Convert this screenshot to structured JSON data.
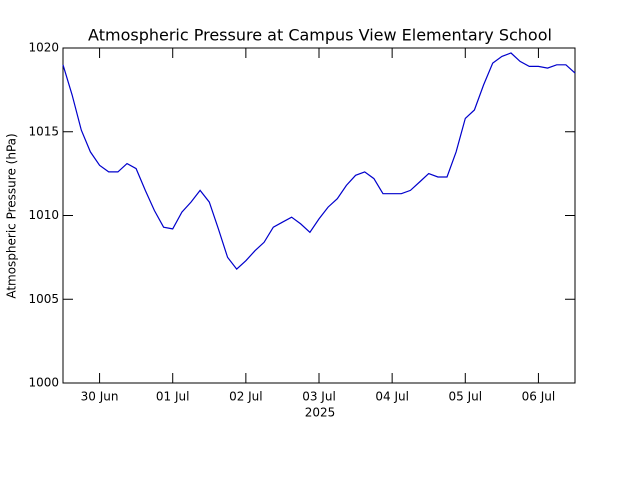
{
  "chart_data": {
    "type": "line",
    "title": "Atmospheric Pressure at Campus View Elementary School",
    "ylabel": "Atmospheric Pressure (hPa)",
    "xlabel": "2025",
    "color": "#0000cc",
    "xlim": [
      "2025-06-29T12:00",
      "2025-07-06T12:00"
    ],
    "xticks": [
      {
        "value": "2025-06-30T00:00",
        "label": "30 Jun"
      },
      {
        "value": "2025-07-01T00:00",
        "label": "01 Jul"
      },
      {
        "value": "2025-07-02T00:00",
        "label": "02 Jul"
      },
      {
        "value": "2025-07-03T00:00",
        "label": "03 Jul"
      },
      {
        "value": "2025-07-04T00:00",
        "label": "04 Jul"
      },
      {
        "value": "2025-07-05T00:00",
        "label": "05 Jul"
      },
      {
        "value": "2025-07-06T00:00",
        "label": "06 Jul"
      }
    ],
    "ylim": [
      1000,
      1020
    ],
    "yticks": [
      1000,
      1005,
      1010,
      1015,
      1020
    ],
    "x": [
      "2025-06-29T12:00",
      "2025-06-29T15:00",
      "2025-06-29T18:00",
      "2025-06-29T21:00",
      "2025-06-30T00:00",
      "2025-06-30T03:00",
      "2025-06-30T06:00",
      "2025-06-30T09:00",
      "2025-06-30T12:00",
      "2025-06-30T15:00",
      "2025-06-30T18:00",
      "2025-06-30T21:00",
      "2025-07-01T00:00",
      "2025-07-01T03:00",
      "2025-07-01T06:00",
      "2025-07-01T09:00",
      "2025-07-01T12:00",
      "2025-07-01T15:00",
      "2025-07-01T18:00",
      "2025-07-01T21:00",
      "2025-07-02T00:00",
      "2025-07-02T03:00",
      "2025-07-02T06:00",
      "2025-07-02T09:00",
      "2025-07-02T12:00",
      "2025-07-02T15:00",
      "2025-07-02T18:00",
      "2025-07-02T21:00",
      "2025-07-03T00:00",
      "2025-07-03T03:00",
      "2025-07-03T06:00",
      "2025-07-03T09:00",
      "2025-07-03T12:00",
      "2025-07-03T15:00",
      "2025-07-03T18:00",
      "2025-07-03T21:00",
      "2025-07-04T00:00",
      "2025-07-04T03:00",
      "2025-07-04T06:00",
      "2025-07-04T09:00",
      "2025-07-04T12:00",
      "2025-07-04T15:00",
      "2025-07-04T18:00",
      "2025-07-04T21:00",
      "2025-07-05T00:00",
      "2025-07-05T03:00",
      "2025-07-05T06:00",
      "2025-07-05T09:00",
      "2025-07-05T12:00",
      "2025-07-05T15:00",
      "2025-07-05T18:00",
      "2025-07-05T21:00",
      "2025-07-06T00:00",
      "2025-07-06T03:00",
      "2025-07-06T06:00",
      "2025-07-06T09:00",
      "2025-07-06T12:00"
    ],
    "values": [
      1019.0,
      1017.2,
      1015.1,
      1013.8,
      1013.0,
      1012.6,
      1012.6,
      1013.1,
      1012.8,
      1011.5,
      1010.3,
      1009.3,
      1009.2,
      1010.2,
      1010.8,
      1011.5,
      1010.8,
      1009.2,
      1007.5,
      1006.8,
      1007.3,
      1007.9,
      1008.4,
      1009.3,
      1009.6,
      1009.9,
      1009.5,
      1009.0,
      1009.8,
      1010.5,
      1011.0,
      1011.8,
      1012.4,
      1012.6,
      1012.2,
      1011.3,
      1011.3,
      1011.3,
      1011.5,
      1012.0,
      1012.5,
      1012.3,
      1012.3,
      1013.8,
      1015.8,
      1016.3,
      1017.8,
      1019.1,
      1019.5,
      1019.7,
      1019.2,
      1018.9,
      1018.9,
      1018.8,
      1019.0,
      1019.0,
      1018.5
    ]
  }
}
